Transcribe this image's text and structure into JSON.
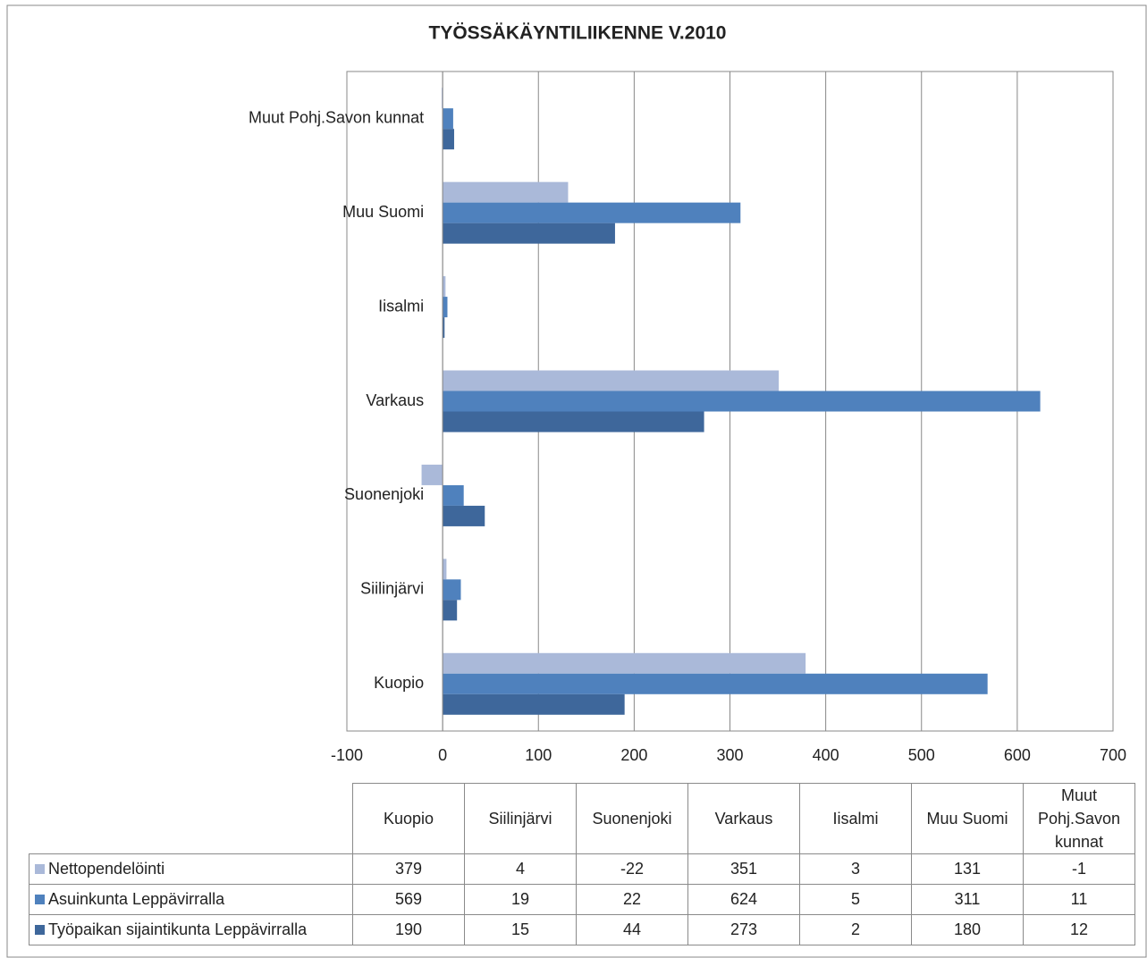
{
  "chart_data": {
    "type": "barh",
    "title": "TYÖSSÄKÄYNTILIIKENNE V.2010",
    "categories": [
      "Kuopio",
      "Siilinjärvi",
      "Suonenjoki",
      "Varkaus",
      "Iisalmi",
      "Muu Suomi",
      "Muut Pohj.Savon kunnat"
    ],
    "series": [
      {
        "name": "Nettopendelöinti",
        "color": "#aab9d9",
        "values": [
          379,
          4,
          -22,
          351,
          3,
          131,
          -1
        ]
      },
      {
        "name": "Asuinkunta Leppävirralla",
        "color": "#4f81bd",
        "values": [
          569,
          19,
          22,
          624,
          5,
          311,
          11
        ]
      },
      {
        "name": "Työpaikan sijaintikunta Leppävirralla",
        "color": "#3e679b",
        "values": [
          190,
          15,
          44,
          273,
          2,
          180,
          12
        ]
      }
    ],
    "xlim": [
      -100,
      700
    ],
    "xticks": [
      -100,
      0,
      100,
      200,
      300,
      400,
      500,
      600,
      700
    ],
    "grid": true,
    "data_table": true
  }
}
